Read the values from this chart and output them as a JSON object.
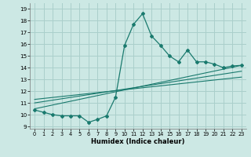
{
  "title": "",
  "xlabel": "Humidex (Indice chaleur)",
  "ylabel": "",
  "bg_color": "#cce8e4",
  "grid_color": "#aacfcb",
  "line_color": "#1a7a6e",
  "xlim": [
    -0.5,
    23.5
  ],
  "ylim": [
    8.8,
    19.5
  ],
  "xticks": [
    0,
    1,
    2,
    3,
    4,
    5,
    6,
    7,
    8,
    9,
    10,
    11,
    12,
    13,
    14,
    15,
    16,
    17,
    18,
    19,
    20,
    21,
    22,
    23
  ],
  "yticks": [
    9,
    10,
    11,
    12,
    13,
    14,
    15,
    16,
    17,
    18,
    19
  ],
  "data_x": [
    0,
    1,
    2,
    3,
    4,
    5,
    6,
    7,
    8,
    9,
    10,
    11,
    12,
    13,
    14,
    15,
    16,
    17,
    18,
    19,
    20,
    21,
    22,
    23
  ],
  "data_y": [
    10.4,
    10.2,
    10.0,
    9.9,
    9.9,
    9.9,
    9.35,
    9.6,
    9.9,
    11.5,
    15.9,
    17.7,
    18.6,
    16.7,
    15.9,
    15.0,
    14.5,
    15.5,
    14.5,
    14.5,
    14.3,
    14.0,
    14.15,
    14.2
  ],
  "trend1_x": [
    0,
    23
  ],
  "trend1_y": [
    10.5,
    14.2
  ],
  "trend2_x": [
    0,
    23
  ],
  "trend2_y": [
    11.0,
    13.7
  ],
  "trend3_x": [
    0,
    23
  ],
  "trend3_y": [
    11.3,
    13.2
  ]
}
